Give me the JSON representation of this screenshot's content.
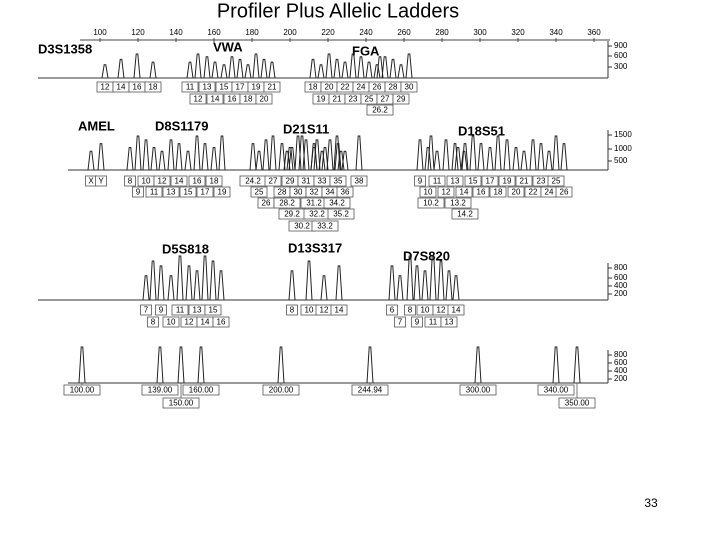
{
  "title": "Profiler Plus Allelic Ladders",
  "size_axis": {
    "ticks": [
      100,
      120,
      140,
      160,
      180,
      200,
      220,
      240,
      260,
      280,
      300,
      320,
      340,
      360
    ]
  },
  "panels": [
    {
      "rfu_ticks": [
        900,
        600,
        300
      ],
      "markers": [
        {
          "name": "D3S1358",
          "alleles": [
            [
              "12",
              "14",
              "16",
              "18"
            ]
          ]
        },
        {
          "name": "VWA",
          "alleles": [
            [
              "11",
              "13",
              "15",
              "17",
              "19",
              "21"
            ],
            [
              "12",
              "14",
              "16",
              "18",
              "20"
            ]
          ]
        },
        {
          "name": "FGA",
          "alleles": [
            [
              "18",
              "20",
              "22",
              "24",
              "26",
              "28",
              "30"
            ],
            [
              "19",
              "21",
              "23",
              "25",
              "27",
              "29"
            ],
            [
              "26.2"
            ]
          ]
        }
      ]
    },
    {
      "rfu_ticks": [
        1500,
        1000,
        500
      ],
      "markers": [
        {
          "name": "AMEL",
          "alleles": [
            [
              "X",
              "Y"
            ]
          ]
        },
        {
          "name": "D8S1179",
          "alleles": [
            [
              "8",
              "10",
              "12",
              "14",
              "16",
              "18"
            ],
            [
              "9",
              "11",
              "13",
              "15",
              "17",
              "19"
            ]
          ]
        },
        {
          "name": "D21S11",
          "alleles": [
            [
              "24.2",
              "27",
              "29",
              "31",
              "33",
              "35",
              "38"
            ],
            [
              "25",
              "28",
              "30",
              "32",
              "34",
              "36"
            ],
            [
              "26",
              "28.2",
              "31.2",
              "34.2"
            ],
            [
              "29.2",
              "32.2",
              "35.2"
            ],
            [
              "30.2",
              "33.2"
            ]
          ]
        },
        {
          "name": "D18S51",
          "alleles": [
            [
              "9",
              "11",
              "13",
              "15",
              "17",
              "19",
              "21",
              "23",
              "25"
            ],
            [
              "10",
              "12",
              "14",
              "16",
              "18",
              "20",
              "22",
              "24",
              "26"
            ],
            [
              "10.2",
              "13.2"
            ],
            [
              "14.2"
            ]
          ]
        }
      ]
    },
    {
      "rfu_ticks": [
        800,
        600,
        400,
        200
      ],
      "markers": [
        {
          "name": "D5S818",
          "alleles": [
            [
              "7",
              "9",
              "11",
              "13",
              "15"
            ],
            [
              "8",
              "10",
              "12",
              "14",
              "16"
            ]
          ]
        },
        {
          "name": "D13S317",
          "alleles": [
            [
              "8",
              "10",
              "12",
              "14"
            ]
          ]
        },
        {
          "name": "D7S820",
          "alleles": [
            [
              "6",
              "8",
              "10",
              "12",
              "14"
            ],
            [
              "7",
              "9",
              "11",
              "13"
            ]
          ]
        }
      ]
    }
  ],
  "size_standard": {
    "rfu_ticks": [
      800,
      600,
      400,
      200
    ],
    "peaks": [
      "100.00",
      "139.00",
      "160.00",
      "200.00",
      "244.94",
      "300.00",
      "340.00",
      "150.00",
      "350.00"
    ]
  },
  "page_number": "33"
}
